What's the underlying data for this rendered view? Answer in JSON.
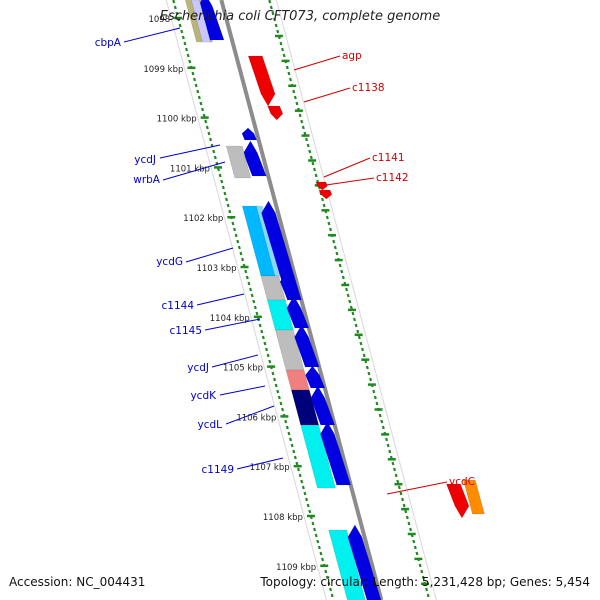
{
  "title": "Escherichia coli CFT073, complete genome",
  "footer": {
    "accession": "Accession: NC_004431",
    "stats": "Topology: circular; Length: 5,231,428 bp; Genes: 5,454"
  },
  "colors": {
    "backbone": "#8c8c8c",
    "tick": "#1f8a1f",
    "label_left": "#0000cc",
    "label_right": "#cc0000"
  },
  "ticks": [
    {
      "label": "1098",
      "kbp": 1098
    },
    {
      "label": "1099 kbp",
      "kbp": 1099
    },
    {
      "label": "1100 kbp",
      "kbp": 1100
    },
    {
      "label": "1101 kbp",
      "kbp": 1101
    },
    {
      "label": "1102 kbp",
      "kbp": 1102
    },
    {
      "label": "1103 kbp",
      "kbp": 1103
    },
    {
      "label": "1104 kbp",
      "kbp": 1104
    },
    {
      "label": "1105 kbp",
      "kbp": 1105
    },
    {
      "label": "1106 kbp",
      "kbp": 1106
    },
    {
      "label": "1107 kbp",
      "kbp": 1107
    },
    {
      "label": "1108 kbp",
      "kbp": 1108
    },
    {
      "label": "1109 kbp",
      "kbp": 1109
    }
  ],
  "genes_left": [
    {
      "name": "cbpA"
    },
    {
      "name": "ycdJ"
    },
    {
      "name": "wrbA"
    },
    {
      "name": "ycdG"
    },
    {
      "name": "c1144"
    },
    {
      "name": "c1145"
    },
    {
      "name": "ycdJ"
    },
    {
      "name": "ycdK"
    },
    {
      "name": "ycdL"
    },
    {
      "name": "c1149"
    }
  ],
  "genes_right": [
    {
      "name": "agp"
    },
    {
      "name": "c1138"
    },
    {
      "name": "c1141"
    },
    {
      "name": "c1142"
    },
    {
      "name": "ycdC"
    }
  ]
}
